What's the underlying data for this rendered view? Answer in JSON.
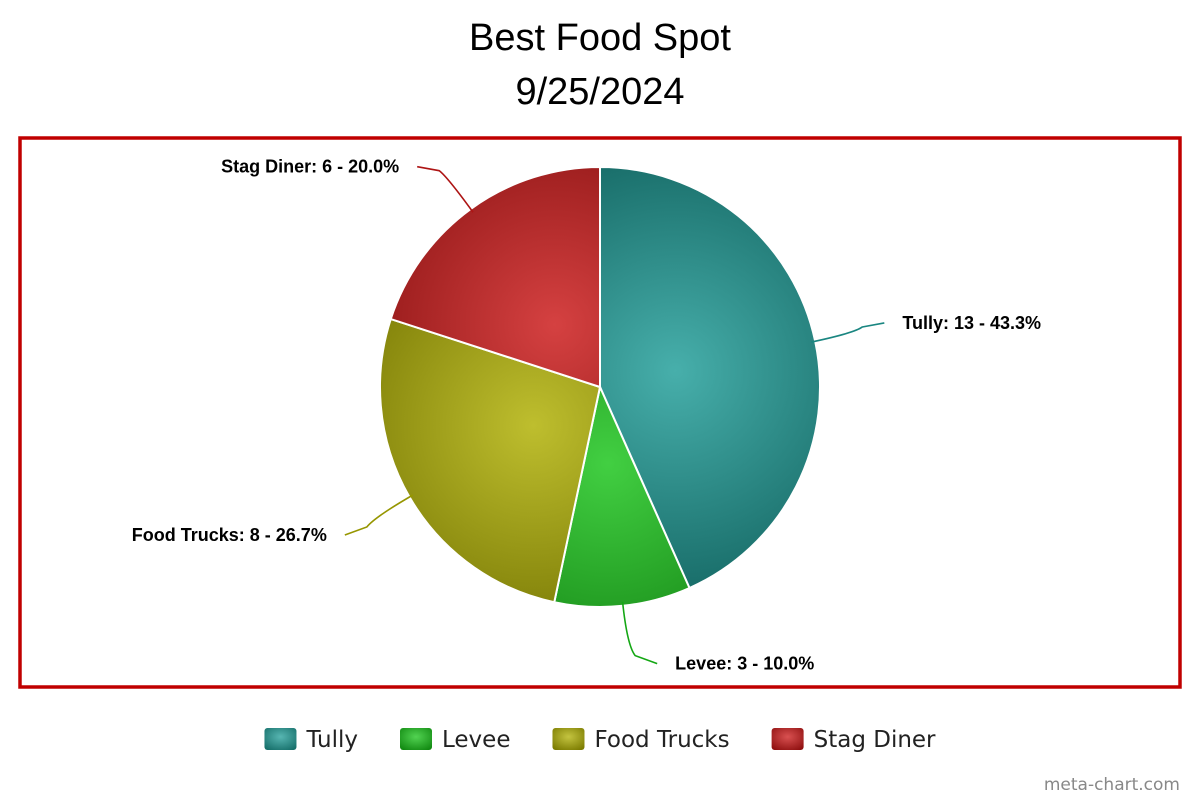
{
  "chart_data": {
    "type": "pie",
    "title": "Best Food Spot",
    "subtitle": "9/25/2024",
    "categories": [
      "Tully",
      "Levee",
      "Food Trucks",
      "Stag Diner"
    ],
    "values": [
      13,
      3,
      8,
      6
    ],
    "labels": [
      "Tully: 13 - 43.3%",
      "Levee: 3 - 10.0%",
      "Food Trucks: 8 - 26.7%",
      "Stag Diner: 6 - 20.0%"
    ],
    "colors": [
      "#1f9e98",
      "#18c418",
      "#b0b000",
      "#cc1717"
    ],
    "legend_position": "bottom",
    "frame_color": "#c00000"
  },
  "watermark": "meta-chart.com"
}
